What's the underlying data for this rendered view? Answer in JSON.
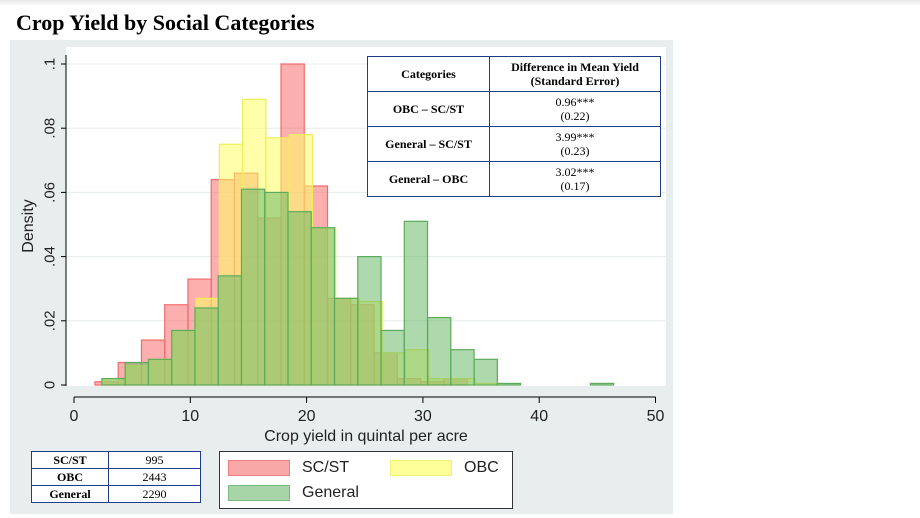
{
  "title": "Crop Yield by Social Categories",
  "chart_data": {
    "type": "bar",
    "subtype": "overlaid histogram",
    "xlabel": "Crop yield in quintal per acre",
    "ylabel": "Density",
    "xlim": [
      -2,
      50
    ],
    "ylim": [
      0,
      0.1
    ],
    "x_ticks": [
      0,
      10,
      20,
      30,
      40,
      50
    ],
    "x_tick_labels": [
      "0",
      "10",
      "20",
      "30",
      "40",
      "50"
    ],
    "y_ticks": [
      0,
      0.02,
      0.04,
      0.06,
      0.08,
      0.1
    ],
    "y_tick_labels": [
      "0",
      ".02",
      ".04",
      ".06",
      ".08",
      ".1"
    ],
    "grid": true,
    "legend_position": "bottom",
    "series": [
      {
        "name": "SC/ST",
        "color": "#f08080",
        "bins": [
          {
            "x0": 1.8,
            "x1": 3.8,
            "y": 0.001
          },
          {
            "x0": 3.8,
            "x1": 5.8,
            "y": 0.007
          },
          {
            "x0": 5.8,
            "x1": 7.8,
            "y": 0.014
          },
          {
            "x0": 7.8,
            "x1": 9.8,
            "y": 0.025
          },
          {
            "x0": 9.8,
            "x1": 11.8,
            "y": 0.033
          },
          {
            "x0": 11.8,
            "x1": 13.8,
            "y": 0.064
          },
          {
            "x0": 13.8,
            "x1": 15.8,
            "y": 0.066
          },
          {
            "x0": 15.8,
            "x1": 17.8,
            "y": 0.052
          },
          {
            "x0": 17.8,
            "x1": 19.8,
            "y": 0.1
          },
          {
            "x0": 19.8,
            "x1": 21.8,
            "y": 0.062
          },
          {
            "x0": 21.8,
            "x1": 23.8,
            "y": 0.027
          },
          {
            "x0": 23.8,
            "x1": 25.8,
            "y": 0.025
          },
          {
            "x0": 25.8,
            "x1": 27.8,
            "y": 0.01
          },
          {
            "x0": 27.8,
            "x1": 29.8,
            "y": 0.002
          },
          {
            "x0": 29.8,
            "x1": 31.8,
            "y": 0.001
          },
          {
            "x0": 31.8,
            "x1": 33.8,
            "y": 0.002
          }
        ]
      },
      {
        "name": "OBC",
        "color": "#ffff80",
        "bins": [
          {
            "x0": 2.5,
            "x1": 4.5,
            "y": 0.002
          },
          {
            "x0": 4.5,
            "x1": 6.5,
            "y": 0.006
          },
          {
            "x0": 6.5,
            "x1": 8.5,
            "y": 0.008
          },
          {
            "x0": 8.5,
            "x1": 10.5,
            "y": 0.017
          },
          {
            "x0": 10.5,
            "x1": 12.5,
            "y": 0.027
          },
          {
            "x0": 12.5,
            "x1": 14.5,
            "y": 0.075
          },
          {
            "x0": 14.5,
            "x1": 16.5,
            "y": 0.089
          },
          {
            "x0": 16.5,
            "x1": 18.5,
            "y": 0.077
          },
          {
            "x0": 18.5,
            "x1": 20.5,
            "y": 0.078
          },
          {
            "x0": 20.5,
            "x1": 22.5,
            "y": 0.049
          },
          {
            "x0": 22.5,
            "x1": 24.5,
            "y": 0.027
          },
          {
            "x0": 24.5,
            "x1": 26.5,
            "y": 0.026
          },
          {
            "x0": 26.5,
            "x1": 28.5,
            "y": 0.01
          },
          {
            "x0": 28.5,
            "x1": 30.5,
            "y": 0.011
          },
          {
            "x0": 30.5,
            "x1": 32.5,
            "y": 0.002
          },
          {
            "x0": 32.5,
            "x1": 34.5,
            "y": 0.002
          },
          {
            "x0": 34.5,
            "x1": 36.5,
            "y": 0.0005
          }
        ]
      },
      {
        "name": "General",
        "color": "#8bc48b",
        "bins": [
          {
            "x0": 2.4,
            "x1": 4.4,
            "y": 0.002
          },
          {
            "x0": 4.4,
            "x1": 6.4,
            "y": 0.007
          },
          {
            "x0": 6.4,
            "x1": 8.4,
            "y": 0.008
          },
          {
            "x0": 8.4,
            "x1": 10.4,
            "y": 0.017
          },
          {
            "x0": 10.4,
            "x1": 12.4,
            "y": 0.024
          },
          {
            "x0": 12.4,
            "x1": 14.4,
            "y": 0.034
          },
          {
            "x0": 14.4,
            "x1": 16.4,
            "y": 0.061
          },
          {
            "x0": 16.4,
            "x1": 18.4,
            "y": 0.06
          },
          {
            "x0": 18.4,
            "x1": 20.4,
            "y": 0.054
          },
          {
            "x0": 20.4,
            "x1": 22.4,
            "y": 0.049
          },
          {
            "x0": 22.4,
            "x1": 24.4,
            "y": 0.027
          },
          {
            "x0": 24.4,
            "x1": 26.4,
            "y": 0.04
          },
          {
            "x0": 26.4,
            "x1": 28.4,
            "y": 0.017
          },
          {
            "x0": 28.4,
            "x1": 30.4,
            "y": 0.051
          },
          {
            "x0": 30.4,
            "x1": 32.4,
            "y": 0.021
          },
          {
            "x0": 32.4,
            "x1": 34.4,
            "y": 0.011
          },
          {
            "x0": 34.4,
            "x1": 36.4,
            "y": 0.008
          },
          {
            "x0": 36.4,
            "x1": 38.4,
            "y": 0.0005
          },
          {
            "x0": 44.4,
            "x1": 46.4,
            "y": 0.0005
          }
        ]
      }
    ]
  },
  "diff_table": {
    "header_category": "Categories",
    "header_diff_line1": "Difference in Mean Yield",
    "header_diff_line2": "(Standard Error)",
    "rows": [
      {
        "category": "OBC – SC/ST",
        "diff": "0.96***",
        "se": "(0.22)"
      },
      {
        "category": "General – SC/ST",
        "diff": "3.99***",
        "se": "(0.23)"
      },
      {
        "category": "General – OBC",
        "diff": "3.02***",
        "se": "(0.17)"
      }
    ]
  },
  "counts_table": [
    {
      "category": "SC/ST",
      "n": "995"
    },
    {
      "category": "OBC",
      "n": "2443"
    },
    {
      "category": "General",
      "n": "2290"
    }
  ],
  "legend": {
    "items": [
      {
        "label": "SC/ST",
        "fill": "#f9a8a8",
        "border": "#f08080"
      },
      {
        "label": "OBC",
        "fill": "#ffff99",
        "border": "#f2f27a"
      },
      {
        "label": "General",
        "fill": "#a8d5a8",
        "border": "#7cb87c"
      }
    ]
  }
}
